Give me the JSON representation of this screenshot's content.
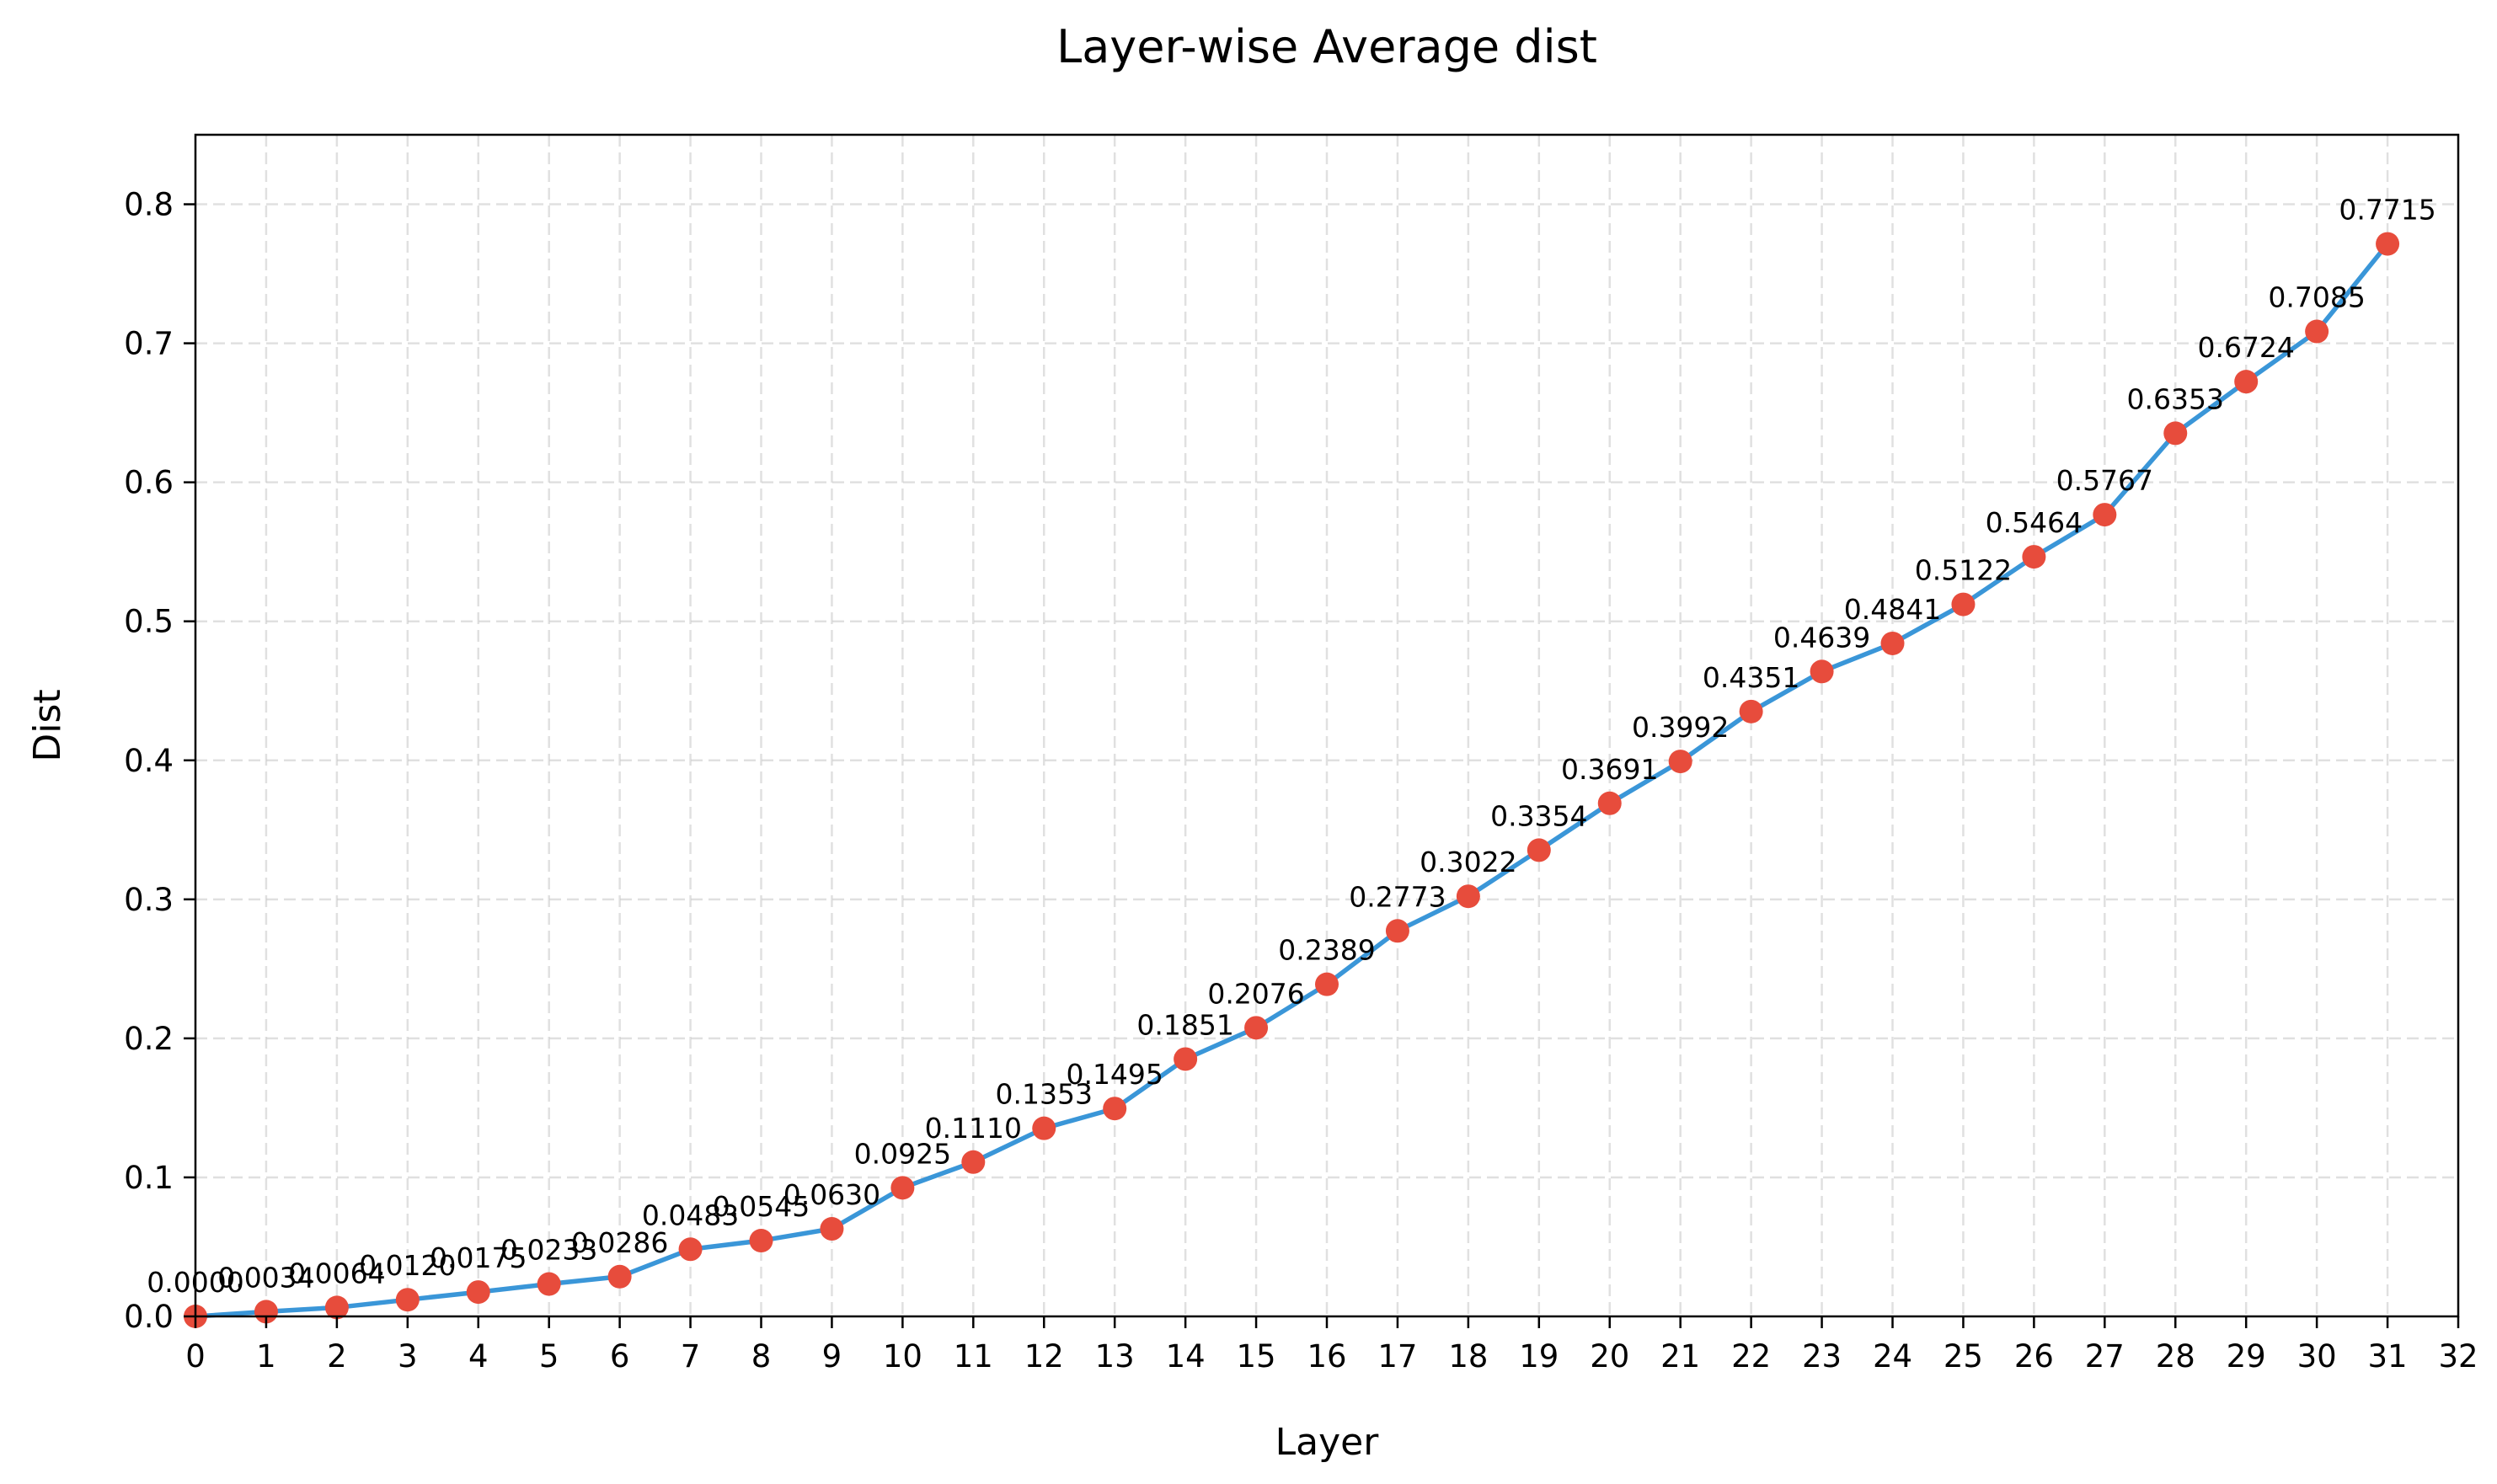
{
  "chart_data": {
    "type": "line",
    "title": "Layer-wise Average dist",
    "xlabel": "Layer",
    "ylabel": "Dist",
    "xlim": [
      0,
      32
    ],
    "ylim": [
      0.0,
      0.85
    ],
    "xticks": [
      0,
      1,
      2,
      3,
      4,
      5,
      6,
      7,
      8,
      9,
      10,
      11,
      12,
      13,
      14,
      15,
      16,
      17,
      18,
      19,
      20,
      21,
      22,
      23,
      24,
      25,
      26,
      27,
      28,
      29,
      30,
      31,
      32
    ],
    "yticks": [
      0.0,
      0.1,
      0.2,
      0.3,
      0.4,
      0.5,
      0.6,
      0.7,
      0.8
    ],
    "ytick_labels": [
      "0.0",
      "0.1",
      "0.2",
      "0.3",
      "0.4",
      "0.5",
      "0.6",
      "0.7",
      "0.8"
    ],
    "grid": true,
    "line_color": "#3a96d8",
    "marker_color": "#e74c3c",
    "series": [
      {
        "x": [
          0,
          1,
          2,
          3,
          4,
          5,
          6,
          7,
          8,
          9,
          10,
          11,
          12,
          13,
          14,
          15,
          16,
          17,
          18,
          19,
          20,
          21,
          22,
          23,
          24,
          25,
          26,
          27,
          28,
          29,
          30,
          31
        ],
        "values": [
          0.0,
          0.0034,
          0.0064,
          0.012,
          0.0175,
          0.0233,
          0.0286,
          0.0483,
          0.0545,
          0.063,
          0.0925,
          0.111,
          0.1353,
          0.1495,
          0.1851,
          0.2076,
          0.2389,
          0.2773,
          0.3022,
          0.3354,
          0.3691,
          0.3992,
          0.4351,
          0.4639,
          0.4841,
          0.5122,
          0.5464,
          0.5767,
          0.6353,
          0.6724,
          0.7085,
          0.7715
        ],
        "labels": [
          "0.0000",
          "0.0034",
          "0.0064",
          "0.0120",
          "0.0175",
          "0.0233",
          "0.0286",
          "0.0483",
          "0.0545",
          "0.0630",
          "0.0925",
          "0.1110",
          "0.1353",
          "0.1495",
          "0.1851",
          "0.2076",
          "0.2389",
          "0.2773",
          "0.3022",
          "0.3354",
          "0.3691",
          "0.3992",
          "0.4351",
          "0.4639",
          "0.4841",
          "0.5122",
          "0.5464",
          "0.5767",
          "0.6353",
          "0.6724",
          "0.7085",
          "0.7715"
        ]
      }
    ]
  }
}
